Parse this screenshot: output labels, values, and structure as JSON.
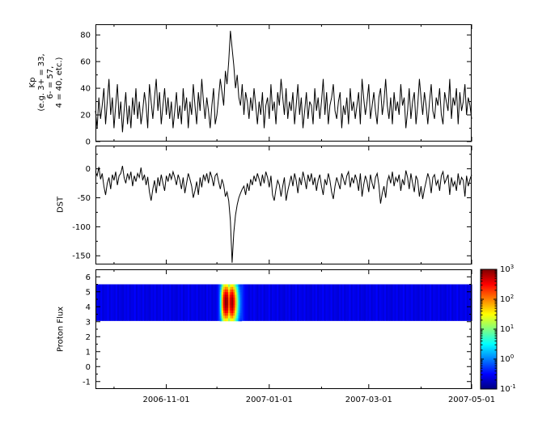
{
  "figure": {
    "background": "#ffffff",
    "axis_color": "#000000",
    "x_axis": {
      "tick_labels": [
        "2006-11-01",
        "2007-01-01",
        "2007-03-01",
        "2007-05-01"
      ],
      "tick_days": [
        42,
        103,
        162,
        223
      ],
      "minor_tick_days": [
        11,
        72,
        134,
        193
      ],
      "total_days": 223
    }
  },
  "chart_data": [
    {
      "type": "line",
      "name": "kp-index",
      "ylabel_lines": [
        "Kp",
        "(e.g. 3+ = 33,",
        "6- = 57,",
        "4 = 40, etc.)"
      ],
      "ylim": [
        0,
        88
      ],
      "yticks": [
        0,
        20,
        40,
        60,
        80
      ],
      "y_minor_step": 10,
      "line_color": "#000000",
      "values": [
        23,
        10,
        33,
        17,
        27,
        40,
        13,
        30,
        47,
        20,
        33,
        10,
        27,
        43,
        17,
        30,
        7,
        23,
        37,
        13,
        27,
        10,
        33,
        20,
        40,
        17,
        30,
        13,
        23,
        37,
        27,
        10,
        43,
        30,
        17,
        33,
        47,
        23,
        37,
        13,
        27,
        40,
        20,
        33,
        17,
        30,
        10,
        23,
        37,
        17,
        27,
        13,
        40,
        23,
        33,
        10,
        30,
        20,
        43,
        27,
        13,
        37,
        23,
        47,
        30,
        17,
        33,
        23,
        10,
        27,
        40,
        13,
        20,
        33,
        47,
        37,
        27,
        53,
        43,
        60,
        83,
        70,
        57,
        40,
        50,
        33,
        27,
        43,
        20,
        37,
        30,
        17,
        33,
        23,
        40,
        27,
        13,
        30,
        20,
        37,
        10,
        27,
        33,
        17,
        43,
        23,
        30,
        13,
        37,
        27,
        47,
        33,
        20,
        40,
        17,
        30,
        23,
        37,
        13,
        27,
        43,
        20,
        33,
        10,
        23,
        37,
        17,
        30,
        27,
        13,
        40,
        23,
        33,
        17,
        30,
        47,
        20,
        37,
        13,
        27,
        33,
        43,
        23,
        17,
        30,
        37,
        10,
        27,
        20,
        33,
        13,
        40,
        23,
        30,
        17,
        27,
        37,
        13,
        47,
        33,
        20,
        30,
        43,
        17,
        27,
        37,
        23,
        13,
        33,
        40,
        20,
        30,
        47,
        27,
        17,
        33,
        13,
        37,
        23,
        30,
        20,
        43,
        27,
        33,
        10,
        23,
        40,
        17,
        30,
        37,
        13,
        27,
        47,
        33,
        20,
        37,
        27,
        13,
        30,
        43,
        23,
        17,
        33,
        27,
        40,
        20,
        13,
        37,
        30,
        23,
        47,
        17,
        33,
        27,
        40,
        13,
        37,
        23,
        30,
        43,
        20,
        33,
        27,
        17
      ]
    },
    {
      "type": "line",
      "name": "dst-index",
      "ylabel": "DST",
      "ylim": [
        -165,
        40
      ],
      "yticks": [
        0,
        -50,
        -100,
        -150
      ],
      "y_minor_step": 25,
      "line_color": "#000000",
      "values": [
        -5,
        -12,
        3,
        -18,
        -8,
        -30,
        -45,
        -25,
        -15,
        -35,
        -10,
        -20,
        -5,
        -28,
        -12,
        -8,
        5,
        -15,
        -25,
        -8,
        -18,
        -5,
        -30,
        -12,
        -22,
        -8,
        -15,
        2,
        -20,
        -10,
        -28,
        -14,
        -40,
        -55,
        -35,
        -20,
        -42,
        -15,
        -30,
        -10,
        -25,
        -38,
        -12,
        -22,
        -8,
        -18,
        -5,
        -15,
        -28,
        -10,
        -20,
        -35,
        -15,
        -42,
        -25,
        -8,
        -18,
        -30,
        -50,
        -38,
        -22,
        -45,
        -15,
        -32,
        -10,
        -20,
        -8,
        -25,
        -5,
        -15,
        -30,
        -12,
        -8,
        -22,
        -35,
        -18,
        -28,
        -48,
        -40,
        -55,
        -90,
        -162,
        -110,
        -80,
        -62,
        -50,
        -42,
        -35,
        -30,
        -45,
        -25,
        -38,
        -18,
        -28,
        -12,
        -22,
        -8,
        -18,
        -30,
        -10,
        -25,
        -5,
        -15,
        -32,
        -12,
        -45,
        -55,
        -35,
        -20,
        -28,
        -48,
        -30,
        -15,
        -55,
        -38,
        -25,
        -12,
        -30,
        -8,
        -20,
        -42,
        -15,
        -28,
        -5,
        -18,
        -35,
        -10,
        -22,
        -8,
        -28,
        -15,
        -38,
        -20,
        -10,
        -30,
        -45,
        -18,
        -28,
        -8,
        -20,
        -40,
        -52,
        -30,
        -15,
        -25,
        -35,
        -8,
        -18,
        -28,
        -12,
        -5,
        -32,
        -15,
        -25,
        -10,
        -20,
        -38,
        -8,
        -48,
        -28,
        -12,
        -22,
        -40,
        -10,
        -25,
        -35,
        -15,
        -8,
        -28,
        -60,
        -42,
        -30,
        -50,
        -22,
        -12,
        -25,
        -5,
        -30,
        -15,
        -22,
        -10,
        -38,
        -18,
        -28,
        -3,
        -15,
        -35,
        -8,
        -25,
        -40,
        -12,
        -20,
        -48,
        -30,
        -52,
        -35,
        -22,
        -8,
        -18,
        -42,
        -15,
        -10,
        -28,
        -20,
        -38,
        -12,
        -5,
        -25,
        -18,
        -10,
        -45,
        -15,
        -30,
        -22,
        -38,
        -8,
        -28,
        -15,
        -20,
        -48,
        -12,
        -30,
        -18,
        -10
      ]
    },
    {
      "type": "heatmap",
      "name": "proton-flux",
      "ylabel": "Proton Flux",
      "ylim": [
        -1.5,
        6.5
      ],
      "yticks": [
        -1,
        0,
        1,
        2,
        3,
        4,
        5,
        6
      ],
      "y_minor_step": 0.5,
      "band_y": [
        3.05,
        5.5
      ],
      "flux_scale": {
        "type": "log",
        "min": 0.1,
        "max": 1000
      },
      "colorbar": {
        "colormap": "jet",
        "tick_exponents": [
          3,
          2,
          1,
          0,
          -1
        ]
      },
      "flux_by_day": [
        0.22,
        0.28,
        0.24,
        0.3,
        0.22,
        0.26,
        0.25,
        0.32,
        0.22,
        0.28,
        0.26,
        0.24,
        0.3,
        0.22,
        0.26,
        0.24,
        0.22,
        0.28,
        0.24,
        0.3,
        0.22,
        0.26,
        0.25,
        0.32,
        0.22,
        0.28,
        0.26,
        0.24,
        0.3,
        0.22,
        0.26,
        0.24,
        0.22,
        0.28,
        0.24,
        0.3,
        0.22,
        0.26,
        0.25,
        0.32,
        0.22,
        0.28,
        0.26,
        0.24,
        0.3,
        0.22,
        0.26,
        0.24,
        0.22,
        0.28,
        0.24,
        0.3,
        0.22,
        0.26,
        0.25,
        0.32,
        0.22,
        0.28,
        0.26,
        0.24,
        0.3,
        0.22,
        0.26,
        0.24,
        0.26,
        0.22,
        0.3,
        0.24,
        0.28,
        0.22,
        0.26,
        0.24,
        0.3,
        0.5,
        3,
        60,
        400,
        900,
        700,
        150,
        500,
        800,
        300,
        60,
        10,
        2,
        0.8,
        0.5,
        0.35,
        0.28,
        0.26,
        0.22,
        0.28,
        0.24,
        0.3,
        0.26,
        0.22,
        0.28,
        0.24,
        0.3,
        0.22,
        0.26,
        0.25,
        0.32,
        0.22,
        0.28,
        0.26,
        0.24,
        0.3,
        0.22,
        0.26,
        0.24,
        0.22,
        0.28,
        0.24,
        0.3,
        0.22,
        0.26,
        0.25,
        0.32,
        0.22,
        0.28,
        0.26,
        0.24,
        0.3,
        0.22,
        0.26,
        0.24,
        0.22,
        0.28,
        0.24,
        0.3,
        0.22,
        0.26,
        0.25,
        0.32,
        0.22,
        0.28,
        0.26,
        0.24,
        0.3,
        0.22,
        0.26,
        0.24,
        0.22,
        0.28,
        0.24,
        0.3,
        0.22,
        0.26,
        0.25,
        0.32,
        0.22,
        0.28,
        0.26,
        0.24,
        0.3,
        0.22,
        0.26,
        0.24,
        0.22,
        0.28,
        0.24,
        0.3,
        0.22,
        0.26,
        0.25,
        0.32,
        0.22,
        0.28,
        0.26,
        0.24,
        0.3,
        0.22,
        0.26,
        0.24,
        0.22,
        0.28,
        0.24,
        0.3,
        0.22,
        0.26,
        0.25,
        0.32,
        0.22,
        0.28,
        0.26,
        0.24,
        0.3,
        0.22,
        0.26,
        0.24,
        0.22,
        0.28,
        0.24,
        0.3,
        0.22,
        0.26,
        0.25,
        0.32,
        0.22,
        0.28,
        0.26,
        0.24,
        0.3,
        0.22,
        0.26,
        0.24,
        0.22,
        0.28,
        0.24,
        0.3,
        0.22,
        0.26,
        0.25,
        0.32,
        0.22,
        0.28,
        0.26,
        0.24,
        0.3,
        0.22,
        0.26,
        0.24
      ]
    }
  ]
}
